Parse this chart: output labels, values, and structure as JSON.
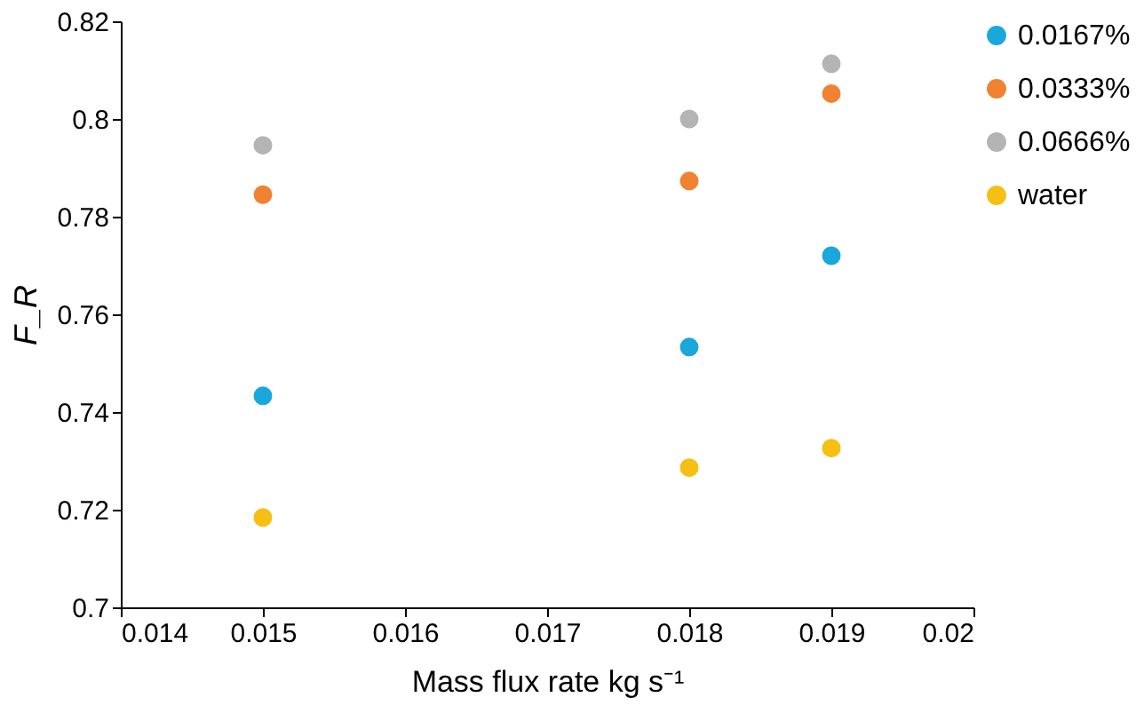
{
  "chart_data": {
    "type": "scatter",
    "xlabel": "Mass flux rate kg s⁻¹",
    "ylabel": "F_R",
    "x": [
      0.015,
      0.018,
      0.019
    ],
    "series": [
      {
        "name": "0.0167%",
        "color": "#1aa7dc",
        "values": [
          0.7433,
          0.7533,
          0.772
        ]
      },
      {
        "name": "0.0333%",
        "color": "#f08232",
        "values": [
          0.7845,
          0.7873,
          0.8052
        ]
      },
      {
        "name": "0.0666%",
        "color": "#b4b4b4",
        "values": [
          0.7946,
          0.8,
          0.8113
        ]
      },
      {
        "name": "water",
        "color": "#f5bf14",
        "values": [
          0.7184,
          0.7286,
          0.7326
        ]
      }
    ],
    "xlim": [
      0.014,
      0.02
    ],
    "xticks": [
      0.014,
      0.015,
      0.016,
      0.017,
      0.018,
      0.019,
      0.02
    ],
    "ylim": [
      0.7,
      0.82
    ],
    "yticks": [
      0.7,
      0.72,
      0.74,
      0.76,
      0.78,
      0.8,
      0.82
    ],
    "grid": false,
    "legend": "right",
    "marker": "circle"
  }
}
